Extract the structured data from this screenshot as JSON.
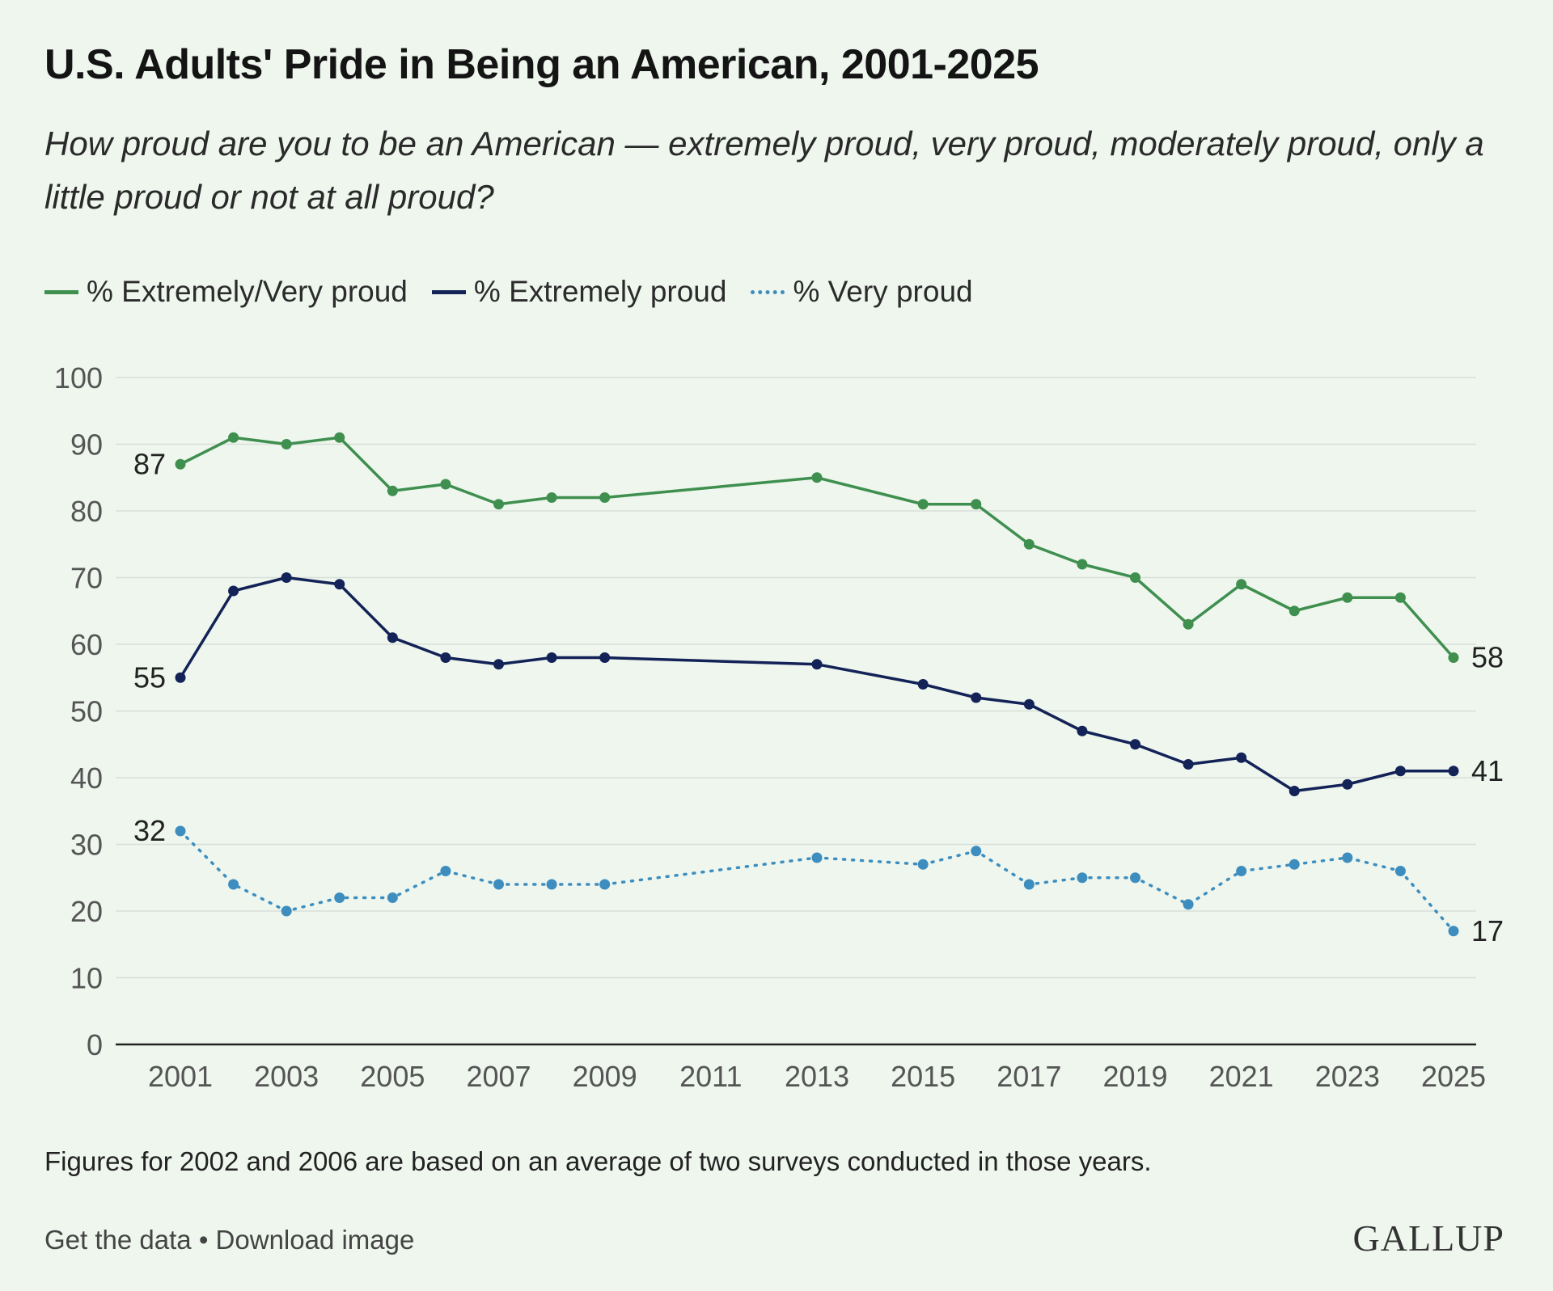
{
  "colors": {
    "background": "#eef6ee",
    "extremely_very": "#3f8f4f",
    "extremely": "#132257",
    "very": "#3d8ebf",
    "grid": "#d8ded8",
    "axis": "#222222",
    "tick_text": "#555555"
  },
  "header": {
    "title": "U.S. Adults' Pride in Being an American, 2001-2025",
    "subtitle": "How proud are you to be an American — extremely proud, very proud, moderately proud, only a little proud or not at all proud?"
  },
  "legend": [
    {
      "label": "% Extremely/Very proud",
      "style": "solid",
      "color": "#3f8f4f"
    },
    {
      "label": "% Extremely proud",
      "style": "solid",
      "color": "#132257"
    },
    {
      "label": "% Very proud",
      "style": "dotted",
      "color": "#3d8ebf"
    }
  ],
  "chart_data": {
    "type": "line",
    "title": "U.S. Adults' Pride in Being an American, 2001-2025",
    "xlabel": "",
    "ylabel": "",
    "ylim": [
      0,
      100
    ],
    "yticks": [
      0,
      10,
      20,
      30,
      40,
      50,
      60,
      70,
      80,
      90,
      100
    ],
    "xlim": [
      2001,
      2025
    ],
    "xticks": [
      2001,
      2003,
      2005,
      2007,
      2009,
      2011,
      2013,
      2015,
      2017,
      2019,
      2021,
      2023,
      2025
    ],
    "grid": true,
    "legend_position": "top-left",
    "x": [
      2001,
      2002,
      2003,
      2004,
      2005,
      2006,
      2007,
      2008,
      2009,
      2013,
      2015,
      2016,
      2017,
      2018,
      2019,
      2020,
      2021,
      2022,
      2023,
      2024,
      2025
    ],
    "series": [
      {
        "name": "% Extremely/Very proud",
        "key": "extremely_very",
        "dash": "solid",
        "values": [
          87,
          91,
          90,
          91,
          83,
          84,
          81,
          82,
          82,
          85,
          81,
          81,
          75,
          72,
          70,
          63,
          69,
          65,
          67,
          67,
          58
        ],
        "start_label": "87",
        "end_label": "58"
      },
      {
        "name": "% Extremely proud",
        "key": "extremely",
        "dash": "solid",
        "values": [
          55,
          68,
          70,
          69,
          61,
          58,
          57,
          58,
          58,
          57,
          54,
          52,
          51,
          47,
          45,
          42,
          43,
          38,
          39,
          41,
          41
        ],
        "start_label": "55",
        "end_label": "41"
      },
      {
        "name": "% Very proud",
        "key": "very",
        "dash": "dotted",
        "values": [
          32,
          24,
          20,
          22,
          22,
          26,
          24,
          24,
          24,
          28,
          27,
          29,
          24,
          25,
          25,
          21,
          26,
          27,
          28,
          26,
          17
        ],
        "start_label": "32",
        "end_label": "17"
      }
    ]
  },
  "footer": {
    "note": "Figures for 2002 and 2006 are based on an average of two surveys conducted in those years.",
    "get_data": "Get the data",
    "separator": "•",
    "download": "Download image",
    "brand": "GALLUP"
  }
}
